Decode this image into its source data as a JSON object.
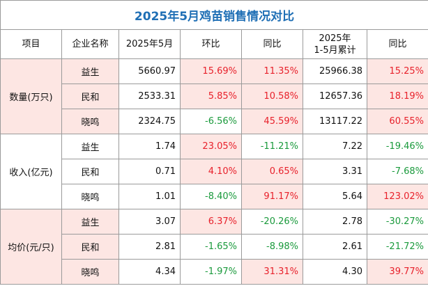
{
  "title": "2025年5月鸡苗销售情况对比",
  "headers": [
    "项目",
    "企业名称",
    "2025年5月",
    "环比",
    "同比",
    "2025年\n1-5月累计",
    "同比"
  ],
  "groups": [
    {
      "label": "数量(万只)",
      "rows": [
        [
          "益生",
          "5660.97",
          "15.69%",
          "11.35%",
          "25966.38",
          "15.25%"
        ],
        [
          "民和",
          "2533.31",
          "5.85%",
          "10.58%",
          "12657.36",
          "18.19%"
        ],
        [
          "晓鸣",
          "2324.75",
          "-6.56%",
          "45.59%",
          "13117.22",
          "60.55%"
        ]
      ]
    },
    {
      "label": "收入(亿元)",
      "rows": [
        [
          "益生",
          "1.74",
          "23.05%",
          "-11.21%",
          "7.22",
          "-19.46%"
        ],
        [
          "民和",
          "0.71",
          "4.10%",
          "0.65%",
          "3.31",
          "-7.68%"
        ],
        [
          "晓鸣",
          "1.01",
          "-8.40%",
          "91.17%",
          "5.64",
          "123.02%"
        ]
      ]
    },
    {
      "label": "均价(元/只)",
      "rows": [
        [
          "益生",
          "3.07",
          "6.37%",
          "-20.26%",
          "2.78",
          "-30.27%"
        ],
        [
          "民和",
          "2.81",
          "-1.65%",
          "-8.98%",
          "2.61",
          "-21.72%"
        ],
        [
          "晓鸣",
          "4.34",
          "-1.97%",
          "31.31%",
          "4.30",
          "39.77%"
        ]
      ]
    }
  ]
}
